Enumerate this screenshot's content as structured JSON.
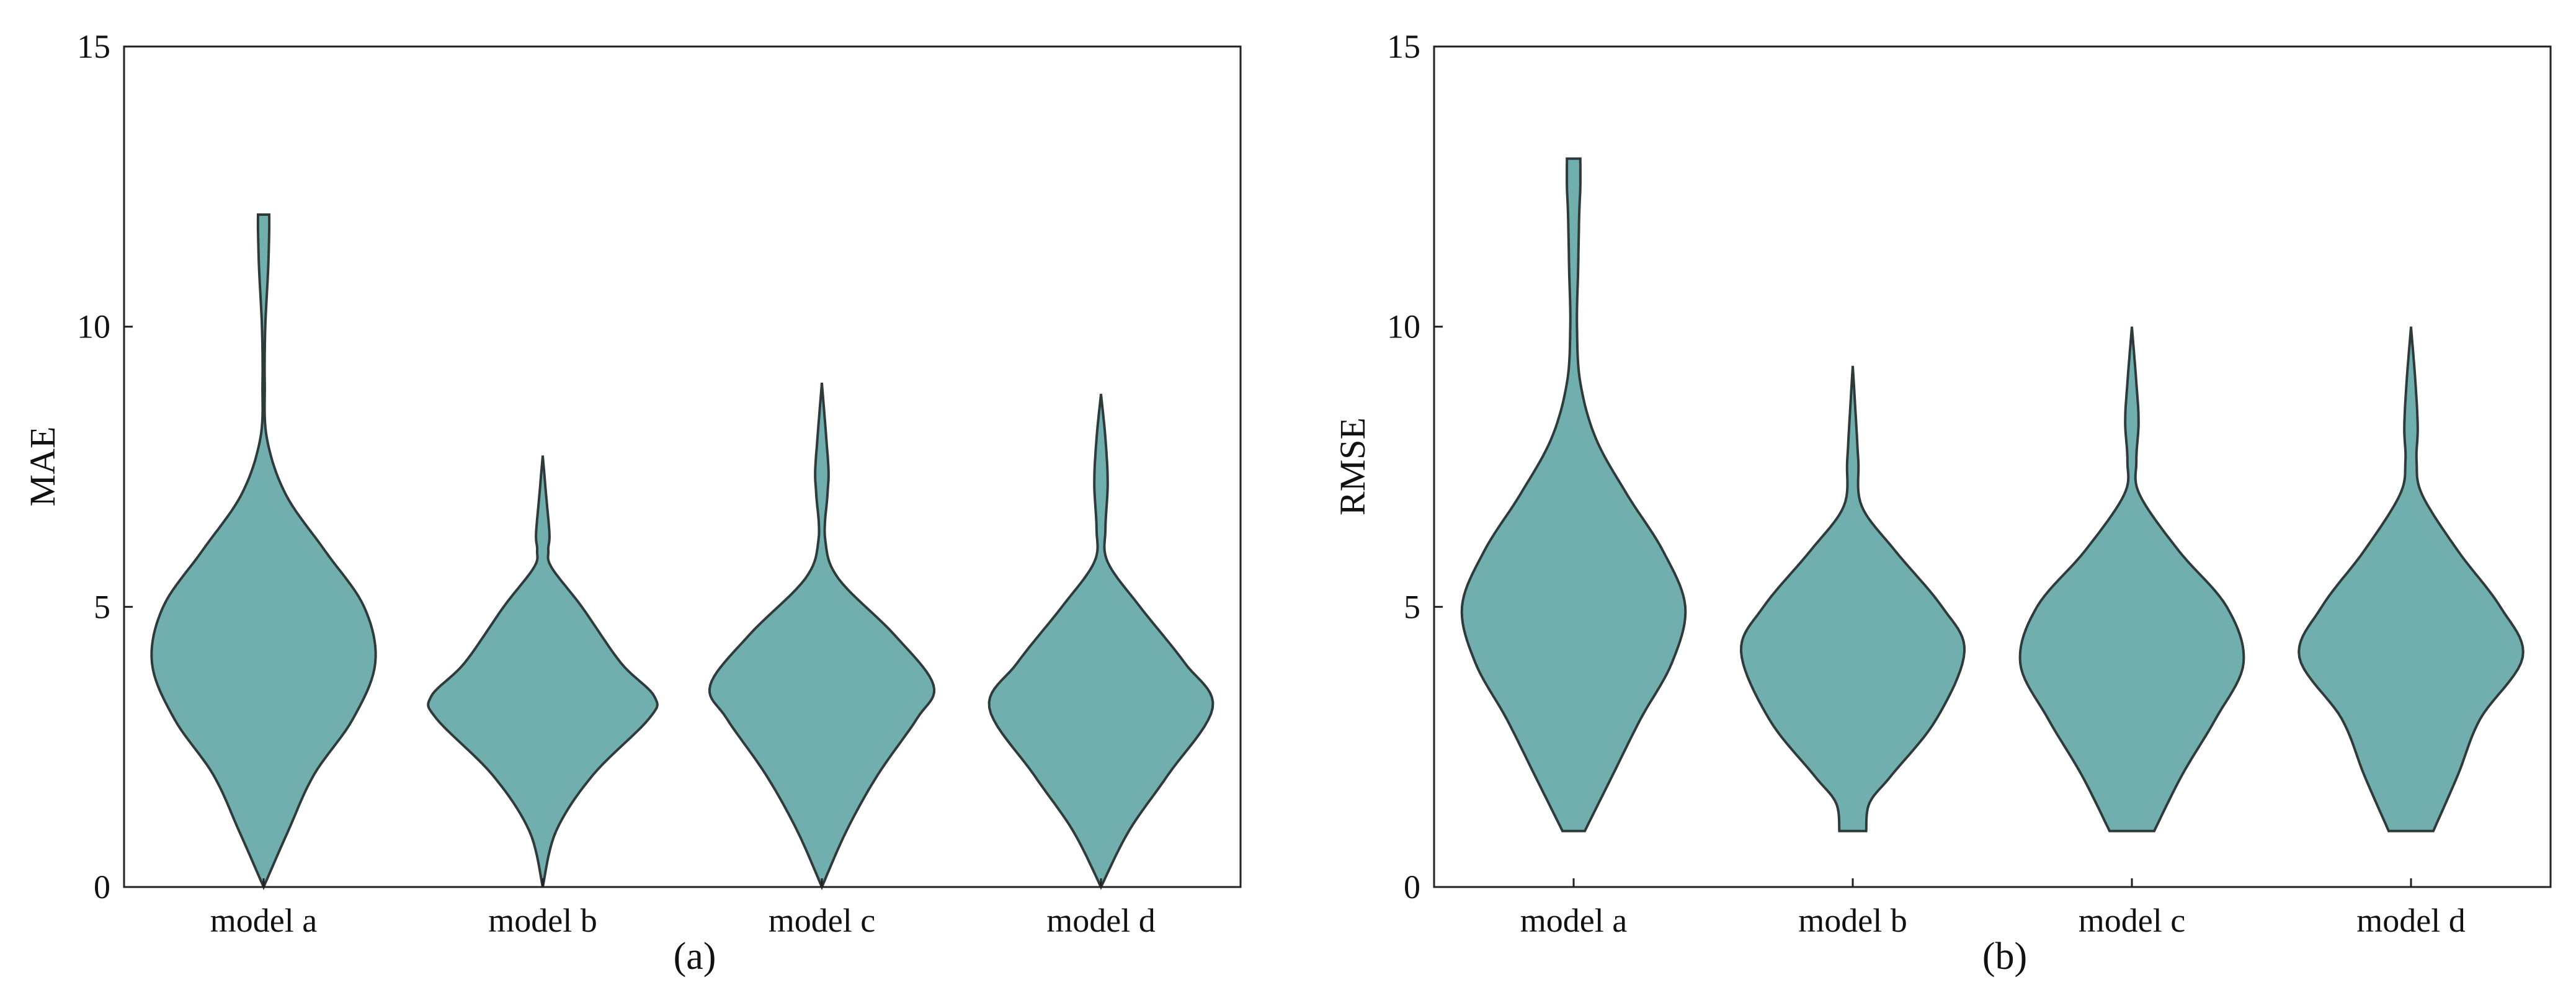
{
  "figure": {
    "panels": [
      {
        "caption": "(a)",
        "ylabel": "MAE"
      },
      {
        "caption": "(b)",
        "ylabel": "RMSE"
      }
    ]
  },
  "colors": {
    "violin_fill": "#71aeae",
    "violin_edge": "#2f3a3a",
    "axis": "#222222"
  },
  "chart_data": [
    {
      "type": "violin",
      "ylabel": "MAE",
      "caption": "(a)",
      "ylim": [
        0,
        15
      ],
      "yticks": [
        0,
        5,
        10,
        15
      ],
      "categories": [
        "model a",
        "model b",
        "model c",
        "model d"
      ],
      "violins": [
        {
          "category": "model a",
          "min": 0,
          "max": 12,
          "density_profile": [
            [
              0,
              0
            ],
            [
              1,
              0.22
            ],
            [
              2,
              0.45
            ],
            [
              3,
              0.8
            ],
            [
              4,
              1.0
            ],
            [
              5,
              0.9
            ],
            [
              6,
              0.55
            ],
            [
              7,
              0.2
            ],
            [
              8,
              0.03
            ],
            [
              9,
              0.01
            ],
            [
              10,
              0.015
            ],
            [
              11,
              0.04
            ],
            [
              11.7,
              0.05
            ],
            [
              12,
              0.05
            ]
          ]
        },
        {
          "category": "model b",
          "min": 0,
          "max": 7.7,
          "density_profile": [
            [
              0,
              0
            ],
            [
              1,
              0.12
            ],
            [
              2,
              0.45
            ],
            [
              3,
              0.95
            ],
            [
              3.4,
              1.0
            ],
            [
              4,
              0.7
            ],
            [
              5,
              0.35
            ],
            [
              5.7,
              0.08
            ],
            [
              6,
              0.05
            ],
            [
              6.3,
              0.06
            ],
            [
              7,
              0.03
            ],
            [
              7.7,
              0
            ]
          ]
        },
        {
          "category": "model c",
          "min": 0,
          "max": 9,
          "density_profile": [
            [
              0,
              0
            ],
            [
              1,
              0.22
            ],
            [
              2,
              0.5
            ],
            [
              3,
              0.85
            ],
            [
              3.6,
              1.0
            ],
            [
              4.5,
              0.65
            ],
            [
              5.5,
              0.15
            ],
            [
              6.2,
              0.03
            ],
            [
              7,
              0.05
            ],
            [
              7.4,
              0.06
            ],
            [
              8,
              0.04
            ],
            [
              9,
              0
            ]
          ]
        },
        {
          "category": "model d",
          "min": 0,
          "max": 8.8,
          "density_profile": [
            [
              0,
              0
            ],
            [
              1,
              0.25
            ],
            [
              2,
              0.6
            ],
            [
              3.2,
              1.0
            ],
            [
              4,
              0.75
            ],
            [
              5,
              0.35
            ],
            [
              5.8,
              0.06
            ],
            [
              6.4,
              0.04
            ],
            [
              7.2,
              0.06
            ],
            [
              8,
              0.04
            ],
            [
              8.8,
              0
            ]
          ]
        }
      ]
    },
    {
      "type": "violin",
      "ylabel": "RMSE",
      "caption": "(b)",
      "ylim": [
        0,
        15
      ],
      "yticks": [
        0,
        5,
        10,
        15
      ],
      "categories": [
        "model a",
        "model b",
        "model c",
        "model d"
      ],
      "violins": [
        {
          "category": "model a",
          "min": 1,
          "max": 13,
          "density_profile": [
            [
              1,
              0.1
            ],
            [
              2,
              0.35
            ],
            [
              3,
              0.6
            ],
            [
              4,
              0.88
            ],
            [
              5,
              1.0
            ],
            [
              6,
              0.8
            ],
            [
              7,
              0.48
            ],
            [
              8,
              0.2
            ],
            [
              9,
              0.06
            ],
            [
              10,
              0.03
            ],
            [
              11,
              0.04
            ],
            [
              12,
              0.05
            ],
            [
              12.5,
              0.06
            ],
            [
              13,
              0.06
            ]
          ]
        },
        {
          "category": "model b",
          "min": 1,
          "max": 9.3,
          "density_profile": [
            [
              1,
              0.12
            ],
            [
              1.5,
              0.15
            ],
            [
              2,
              0.35
            ],
            [
              3,
              0.75
            ],
            [
              4.2,
              1.0
            ],
            [
              5,
              0.8
            ],
            [
              6,
              0.38
            ],
            [
              6.8,
              0.08
            ],
            [
              7.6,
              0.05
            ],
            [
              8.3,
              0.03
            ],
            [
              9.3,
              0
            ]
          ]
        },
        {
          "category": "model c",
          "min": 1,
          "max": 10,
          "density_profile": [
            [
              1,
              0.2
            ],
            [
              2,
              0.45
            ],
            [
              3,
              0.75
            ],
            [
              4,
              1.0
            ],
            [
              5,
              0.85
            ],
            [
              6,
              0.42
            ],
            [
              7,
              0.07
            ],
            [
              7.6,
              0.04
            ],
            [
              8.3,
              0.06
            ],
            [
              9,
              0.04
            ],
            [
              10,
              0
            ]
          ]
        },
        {
          "category": "model d",
          "min": 1,
          "max": 10,
          "density_profile": [
            [
              1,
              0.2
            ],
            [
              2,
              0.42
            ],
            [
              3,
              0.62
            ],
            [
              4.1,
              1.0
            ],
            [
              5,
              0.8
            ],
            [
              6,
              0.42
            ],
            [
              7,
              0.1
            ],
            [
              7.6,
              0.05
            ],
            [
              8.2,
              0.06
            ],
            [
              9,
              0.04
            ],
            [
              10,
              0
            ]
          ]
        }
      ]
    }
  ]
}
